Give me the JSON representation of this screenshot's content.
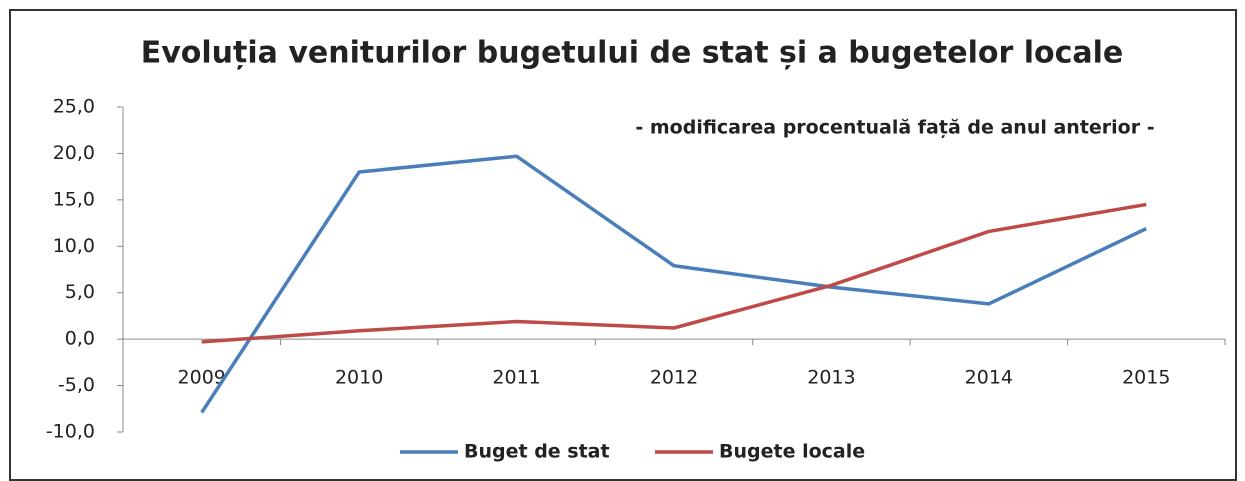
{
  "chart_data": {
    "type": "line",
    "title": "Evoluția veniturilor bugetului de stat și a bugetelor locale",
    "subtitle": "- modificarea procentuală față de anul anterior -",
    "categories": [
      "2009",
      "2010",
      "2011",
      "2012",
      "2013",
      "2014",
      "2015"
    ],
    "series": [
      {
        "name": "Buget de stat",
        "color": "#4a7ebb",
        "values": [
          -7.9,
          18.0,
          19.7,
          7.9,
          5.6,
          3.8,
          11.9
        ]
      },
      {
        "name": "Bugete locale",
        "color": "#be4b48",
        "values": [
          -0.3,
          0.9,
          1.9,
          1.2,
          5.8,
          11.6,
          14.5
        ]
      }
    ],
    "ylim": [
      -10,
      25
    ],
    "yticks": [
      {
        "value": -10,
        "label": "-10,0"
      },
      {
        "value": -5,
        "label": "-5,0"
      },
      {
        "value": 0,
        "label": "0,0"
      },
      {
        "value": 5,
        "label": "5,0"
      },
      {
        "value": 10,
        "label": "10,0"
      },
      {
        "value": 15,
        "label": "15,0"
      },
      {
        "value": 20,
        "label": "20,0"
      },
      {
        "value": 25,
        "label": "25,0"
      }
    ],
    "legend": "bottom"
  }
}
